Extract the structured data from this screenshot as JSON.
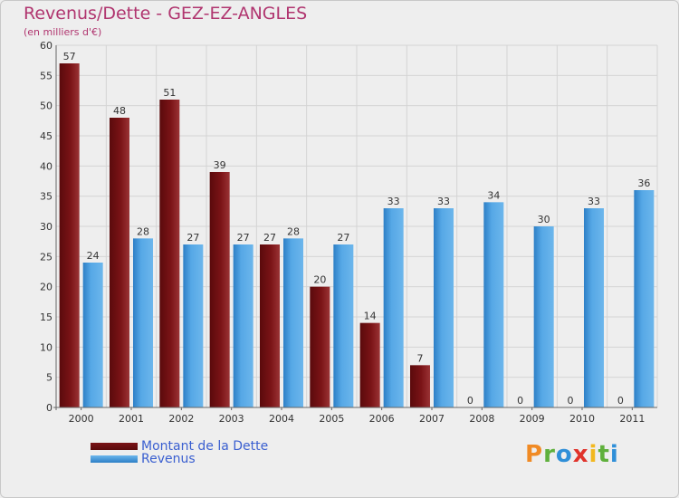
{
  "header": {
    "title": "Revenus/Dette - GEZ-EZ-ANGLES",
    "subtitle": "(en milliers d'€)"
  },
  "legend": {
    "debt_label": "Montant de la Dette",
    "revenue_label": "Revenus"
  },
  "logo": {
    "text": "Proxiti",
    "colors": [
      "#f08a24",
      "#5fb03c",
      "#2f8fd8",
      "#e0332b",
      "#f2b81f",
      "#5fb03c",
      "#2f8fd8"
    ]
  },
  "colors": {
    "debt": "#7a1316",
    "debt_light": "#8f2a2c",
    "revenue": "#56a8e6",
    "revenue_dark": "#2d7fc6",
    "title": "#b0356f",
    "legend_text": "#3a5fd0",
    "grid": "#d4d4d4",
    "background": "#eeeeee"
  },
  "chart_data": {
    "type": "bar",
    "title": "Revenus/Dette - GEZ-EZ-ANGLES",
    "subtitle": "(en milliers d'€)",
    "categories": [
      "2000",
      "2001",
      "2002",
      "2003",
      "2004",
      "2005",
      "2006",
      "2007",
      "2008",
      "2009",
      "2010",
      "2011"
    ],
    "series": [
      {
        "name": "Montant de la Dette",
        "values": [
          57,
          48,
          51,
          39,
          27,
          20,
          14,
          7,
          0,
          0,
          0,
          0
        ]
      },
      {
        "name": "Revenus",
        "values": [
          24,
          28,
          27,
          27,
          28,
          27,
          33,
          33,
          34,
          30,
          33,
          36
        ]
      }
    ],
    "yticks": [
      0,
      5,
      10,
      15,
      20,
      25,
      30,
      35,
      40,
      45,
      50,
      55,
      60
    ],
    "ylim": [
      0,
      60
    ],
    "grid": true,
    "legend": "bottom-left"
  }
}
